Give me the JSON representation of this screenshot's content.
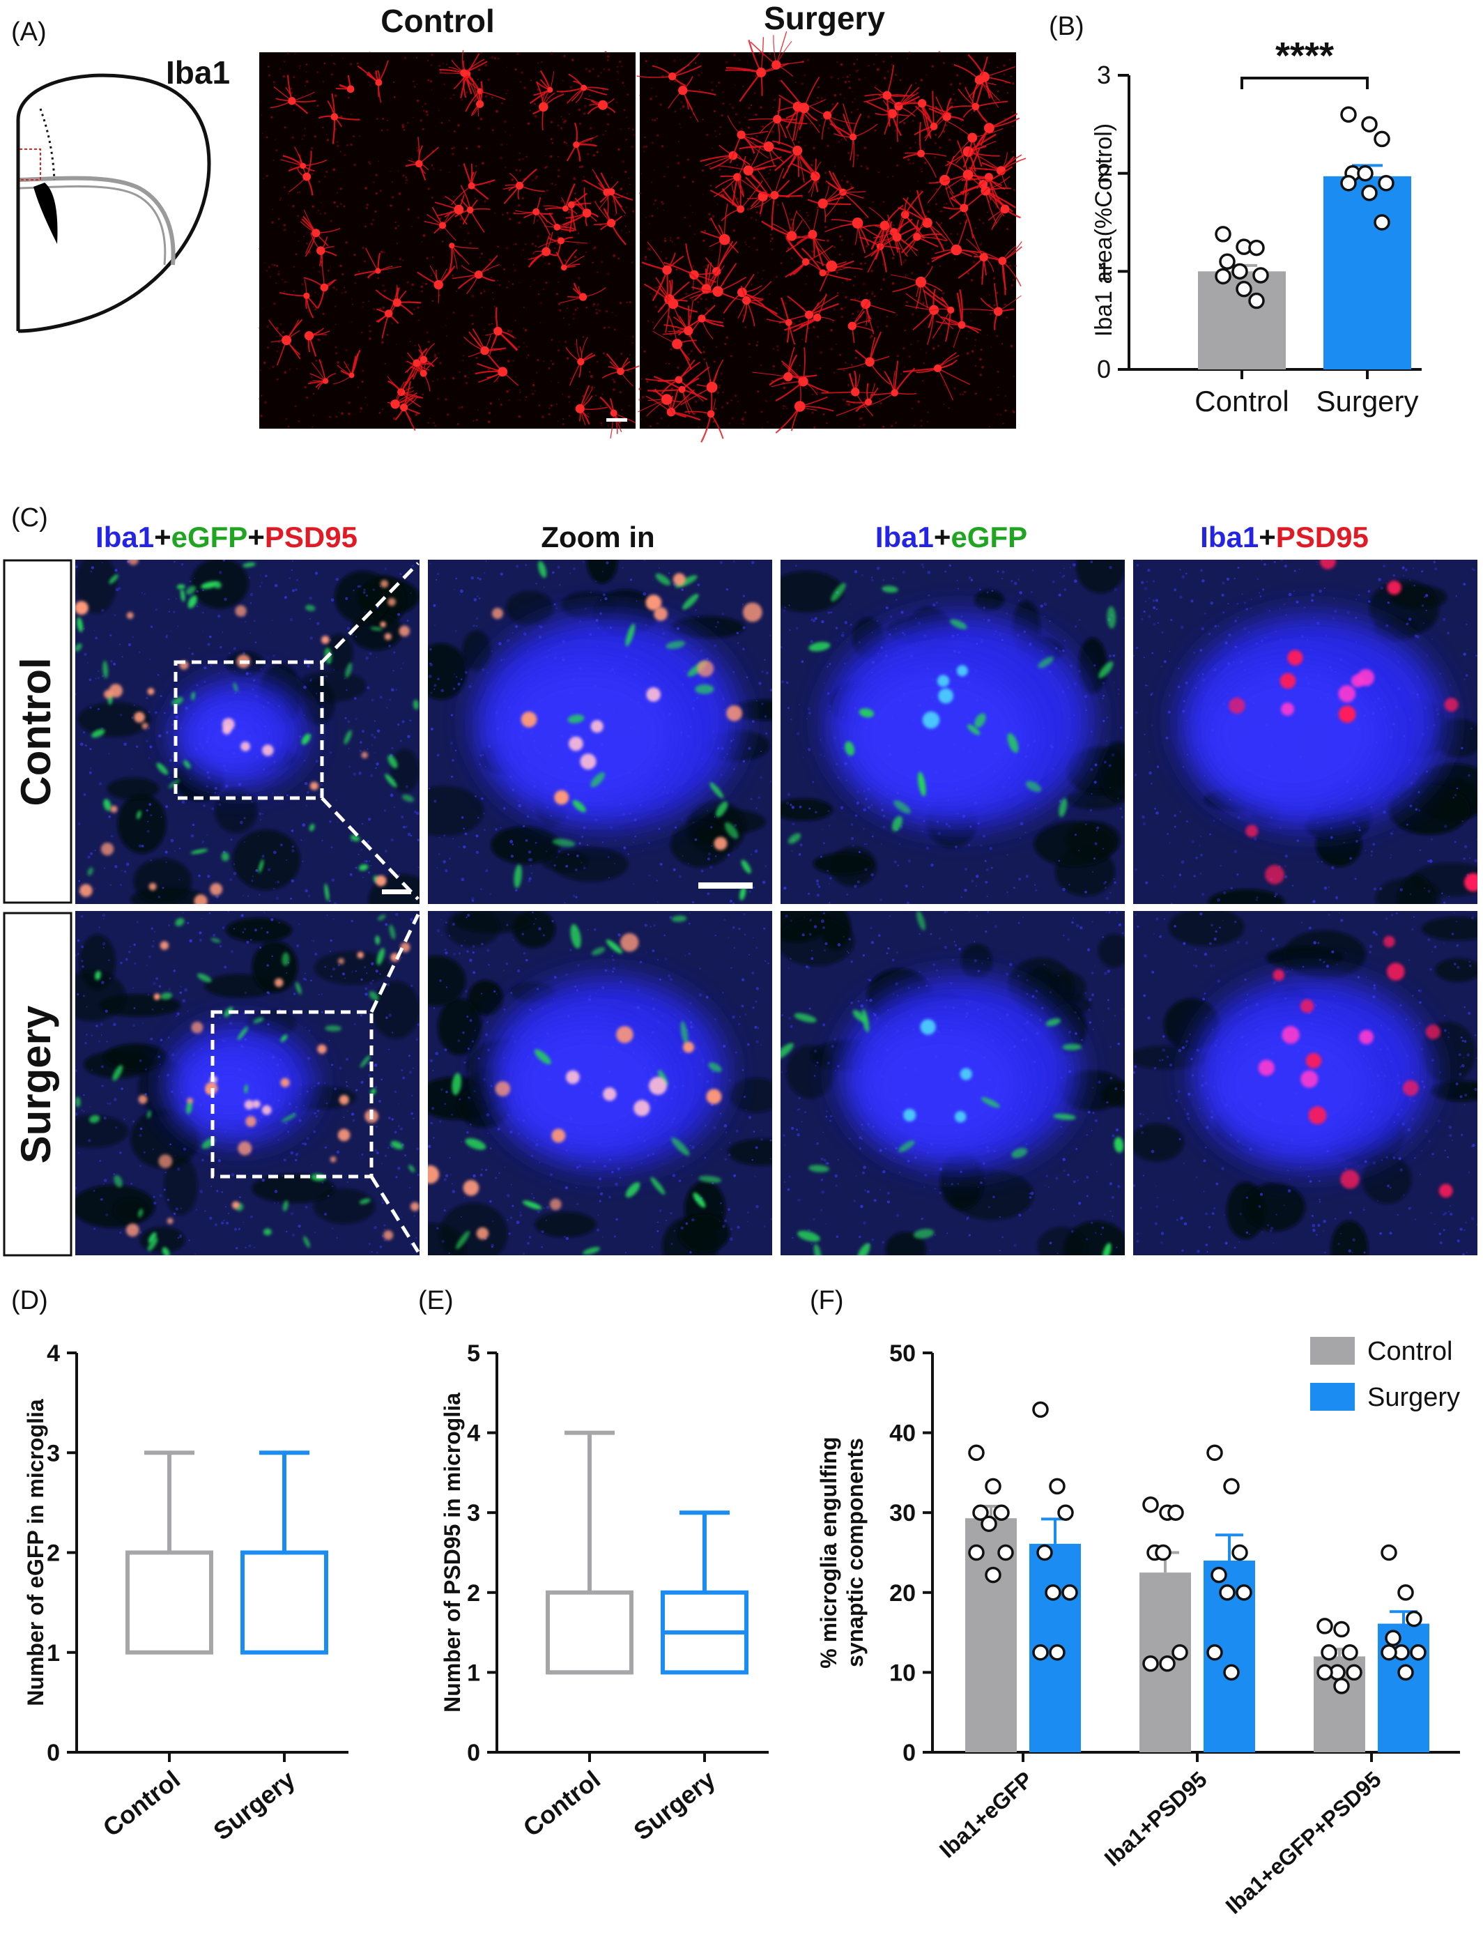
{
  "panel_labels": [
    "(A)",
    "(B)",
    "(C)",
    "(D)",
    "(E)",
    "(F)"
  ],
  "colors": {
    "control": "#a6a6a9",
    "surgery": "#1a8cf2",
    "iba1": "#2424e6",
    "egfp": "#1fa51f",
    "psd95": "#e01b25"
  },
  "panel_a": {
    "stain_label": "Iba1",
    "column_titles": [
      "Control",
      "Surgery"
    ],
    "icons": [
      "brain-section-schematic-icon",
      "scale-bar-icon"
    ]
  },
  "panel_c": {
    "column_headers": [
      [
        {
          "text": "Iba1",
          "color": "iba1"
        },
        {
          "text": "+",
          "color": "black"
        },
        {
          "text": "eGFP",
          "color": "egfp"
        },
        {
          "text": "+",
          "color": "black"
        },
        {
          "text": "PSD95",
          "color": "psd95"
        }
      ],
      [
        {
          "text": "Zoom in",
          "color": "black"
        }
      ],
      [
        {
          "text": "Iba1",
          "color": "iba1"
        },
        {
          "text": "+",
          "color": "black"
        },
        {
          "text": "eGFP",
          "color": "egfp"
        }
      ],
      [
        {
          "text": "Iba1",
          "color": "iba1"
        },
        {
          "text": "+",
          "color": "black"
        },
        {
          "text": "PSD95",
          "color": "psd95"
        }
      ]
    ],
    "row_labels": [
      "Control",
      "Surgery"
    ]
  },
  "chart_data": [
    {
      "id": "B",
      "type": "bar",
      "categories": [
        "Control",
        "Surgery"
      ],
      "values": [
        1.0,
        1.97
      ],
      "sem": [
        0.06,
        0.11
      ],
      "points": [
        [
          1.38,
          1.25,
          1.24,
          1.1,
          1.0,
          0.96,
          0.95,
          0.82,
          0.7
        ],
        [
          2.6,
          2.5,
          2.35,
          2.0,
          2.0,
          1.9,
          1.9,
          1.8,
          1.5
        ]
      ],
      "ylabel": "Iba1 area(%Control)",
      "ylim": [
        0,
        3
      ],
      "yticks": [
        "0",
        "1",
        "2",
        "3"
      ],
      "significance": "****"
    },
    {
      "id": "D",
      "type": "box",
      "categories": [
        "Control",
        "Surgery"
      ],
      "boxes": [
        {
          "min": 1,
          "q1": 1,
          "median": 2,
          "q3": 2,
          "max": 3
        },
        {
          "min": 1,
          "q1": 1,
          "median": 2,
          "q3": 2,
          "max": 3
        }
      ],
      "ylabel": "Number of eGFP  in microglia",
      "ylim": [
        0,
        4
      ],
      "yticks": [
        "0",
        "1",
        "2",
        "3",
        "4"
      ]
    },
    {
      "id": "E",
      "type": "box",
      "categories": [
        "Control",
        "Surgery"
      ],
      "boxes": [
        {
          "min": 1,
          "q1": 1,
          "median": 1,
          "q3": 2,
          "max": 4
        },
        {
          "min": 1,
          "q1": 1,
          "median": 1.5,
          "q3": 2,
          "max": 3
        }
      ],
      "ylabel": "Number of PSD95  in microglia",
      "ylim": [
        0,
        5
      ],
      "yticks": [
        "0",
        "1",
        "2",
        "3",
        "4",
        "5"
      ]
    },
    {
      "id": "F",
      "type": "bar",
      "categories": [
        "Iba1+eGFP",
        "Iba1+PSD95",
        "Iba1+eGFP+PSD95"
      ],
      "series": [
        {
          "name": "Control",
          "values": [
            29.3,
            22.5,
            12.0
          ],
          "sem": [
            1.5,
            2.5,
            0.9
          ],
          "points": [
            [
              37.5,
              33.3,
              30.0,
              30.0,
              28.6,
              25.0,
              25.0,
              22.2
            ],
            [
              31.0,
              30.0,
              30.0,
              25.0,
              25.0,
              12.5,
              11.1,
              11.1
            ],
            [
              15.8,
              15.4,
              12.5,
              12.5,
              10.0,
              10.0,
              10.0,
              8.3
            ]
          ]
        },
        {
          "name": "Surgery",
          "values": [
            26.1,
            24.0,
            16.1
          ],
          "sem": [
            3.1,
            3.2,
            1.5
          ],
          "points": [
            [
              42.9,
              33.3,
              30.0,
              25.0,
              20.0,
              20.0,
              12.5,
              12.5
            ],
            [
              37.5,
              33.3,
              25.0,
              22.2,
              20.0,
              20.0,
              12.5,
              10.0
            ],
            [
              25.0,
              20.0,
              16.7,
              14.3,
              12.5,
              12.5,
              12.5,
              10.0
            ]
          ]
        }
      ],
      "ylabel": "% microglia engulfing synaptic components",
      "ylabel_lines": [
        "% microglia engulfing",
        "synaptic components"
      ],
      "ylim": [
        0,
        50
      ],
      "yticks": [
        "0",
        "10",
        "20",
        "30",
        "40",
        "50"
      ],
      "legend_position": "top-right"
    }
  ]
}
